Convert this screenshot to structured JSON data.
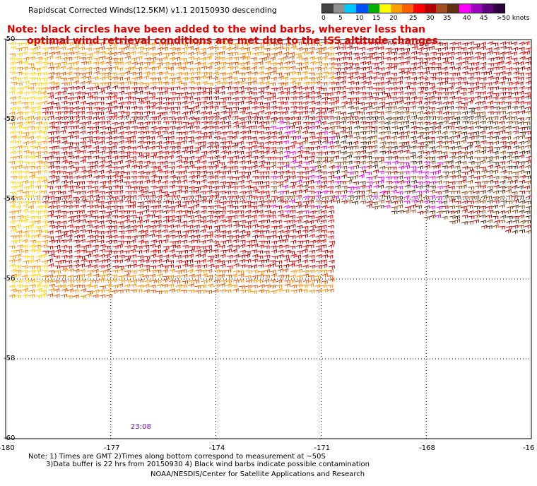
{
  "title": "Rapidscat Corrected Winds(12.5KM) v1.1 20150930 descending",
  "note_line1": "Note: black circles have been added to the wind barbs, wherever less than",
  "note_line2": "optimal wind retrieval conditions are met due to the ISS altitude changes.",
  "legend": {
    "labels": [
      "0",
      "5",
      "10",
      "15",
      "20",
      "25",
      "30",
      "35",
      "40",
      "45",
      ">50 knots"
    ],
    "colors": [
      "#444444",
      "#909090",
      "#00c8ff",
      "#0050ff",
      "#00b000",
      "#ffff00",
      "#ffa000",
      "#ff6000",
      "#ff0000",
      "#b00000",
      "#a05020",
      "#603010",
      "#ff00ff",
      "#a000c0",
      "#600080",
      "#300040"
    ]
  },
  "chart_data": {
    "type": "map",
    "lon_ticks": [
      "-180",
      "-177",
      "-174",
      "-171",
      "-168",
      "-16"
    ],
    "lat_ticks": [
      "-50",
      "-52",
      "-54",
      "-56",
      "-58",
      "-60"
    ],
    "lon_range": [
      -180,
      -165
    ],
    "lat_range": [
      -60,
      -50
    ],
    "grid": true,
    "time_label": "23:08"
  },
  "footer": {
    "line1": "Note: 1) Times are GMT 2)Times along bottom correspond to measurement at ~50S",
    "line2": "3)Data buffer is 22 hrs from 20150930 4) Black wind barbs indicate possible contamination",
    "line3": "NOAA/NESDIS/Center for Satellite Applications and Research"
  }
}
